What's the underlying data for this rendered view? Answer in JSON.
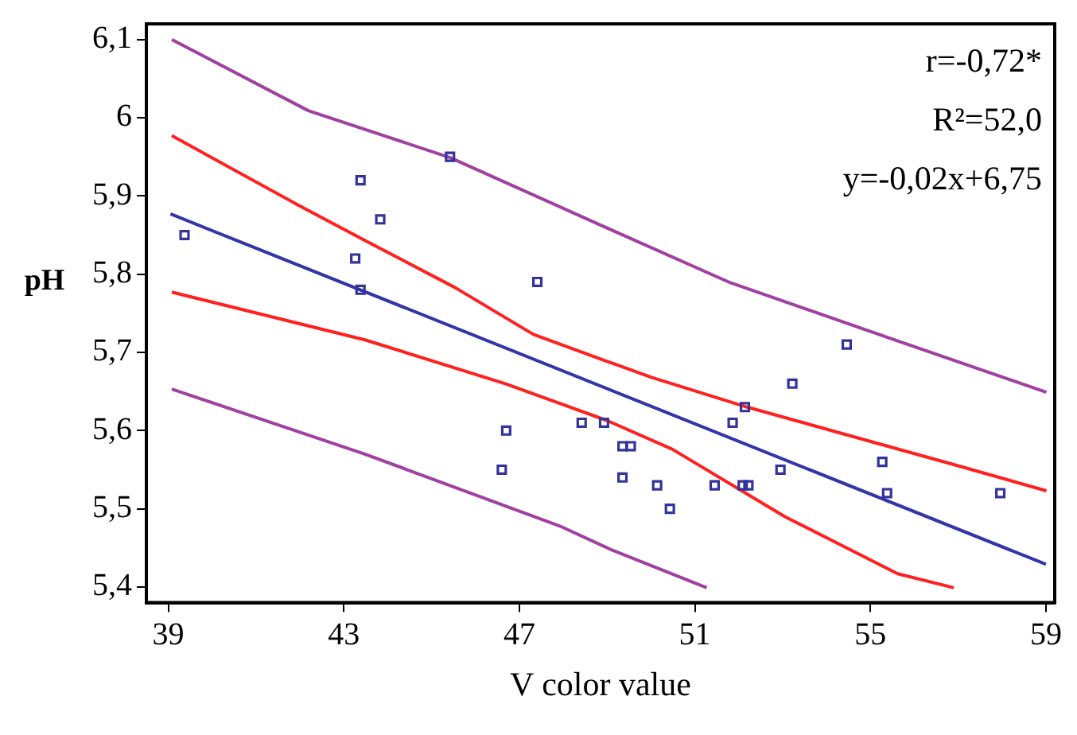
{
  "chart_data": {
    "type": "scatter",
    "xlabel": "V color value",
    "ylabel": "pH",
    "xlim": [
      38.5,
      59.2
    ],
    "ylim": [
      5.38,
      6.12
    ],
    "xticks": [
      39,
      43,
      47,
      51,
      55,
      59
    ],
    "yticks": [
      {
        "value": 5.4,
        "label": "5,4"
      },
      {
        "value": 5.5,
        "label": "5,5"
      },
      {
        "value": 5.6,
        "label": "5,6"
      },
      {
        "value": 5.7,
        "label": "5,7"
      },
      {
        "value": 5.8,
        "label": "5,8"
      },
      {
        "value": 5.9,
        "label": "5,9"
      },
      {
        "value": 6,
        "label": "6"
      },
      {
        "value": 6.1,
        "label": "6,1"
      }
    ],
    "grid": false,
    "legend": false,
    "annotations": [
      "r=-0,72*",
      "R²=52,0",
      "y=-0,02x+6,75"
    ],
    "series": [
      {
        "marker": "square",
        "color": "#333399",
        "x": [
          39.37,
          43.38,
          43.83,
          43.26,
          43.38,
          45.42,
          47.41,
          46.7,
          46.6,
          48.42,
          48.93,
          49.35,
          49.54,
          49.35,
          50.14,
          50.43,
          51.45,
          51.86,
          52.14,
          52.09,
          52.22,
          52.95,
          53.22,
          54.46,
          55.27,
          55.38,
          57.96
        ],
        "values": [
          5.85,
          5.92,
          5.87,
          5.82,
          5.78,
          5.95,
          5.79,
          5.6,
          5.55,
          5.61,
          5.61,
          5.58,
          5.58,
          5.54,
          5.53,
          5.5,
          5.53,
          5.61,
          5.63,
          5.53,
          5.53,
          5.55,
          5.66,
          5.71,
          5.56,
          5.52,
          5.52
        ]
      },
      {
        "type": "line",
        "marker": "none",
        "line_style": "solid",
        "color": "#3333aa",
        "x": [
          39.05,
          59
        ],
        "values": [
          5.877,
          5.429
        ]
      },
      {
        "type": "line",
        "marker": "none",
        "line_style": "solid",
        "color": "#ff2020",
        "x": [
          39.08,
          41.94,
          43.48,
          45.53,
          47.32,
          49.12,
          50.01,
          52.19,
          54.37,
          56.93,
          59.01
        ],
        "values": [
          5.977,
          5.889,
          5.843,
          5.783,
          5.723,
          5.686,
          5.668,
          5.63,
          5.596,
          5.556,
          5.523
        ]
      },
      {
        "type": "line",
        "marker": "none",
        "line_style": "solid",
        "color": "#ff2020",
        "x": [
          39.08,
          43.48,
          46.68,
          48.99,
          50.49,
          53.05,
          55.62,
          56.9
        ],
        "values": [
          5.777,
          5.716,
          5.66,
          5.613,
          5.576,
          5.49,
          5.417,
          5.399
        ]
      },
      {
        "type": "line",
        "marker": "none",
        "line_style": "solid",
        "color": "#a040a0",
        "x": [
          39.08,
          42.19,
          45.42,
          49.12,
          51.81,
          55.4,
          59.01
        ],
        "values": [
          6.1,
          6.009,
          5.949,
          5.856,
          5.789,
          5.719,
          5.649
        ]
      },
      {
        "type": "line",
        "marker": "none",
        "line_style": "solid",
        "color": "#a040a0",
        "x": [
          39.08,
          43.48,
          47.96,
          49.12,
          51.27
        ],
        "values": [
          5.653,
          5.57,
          5.477,
          5.447,
          5.399
        ]
      }
    ]
  }
}
